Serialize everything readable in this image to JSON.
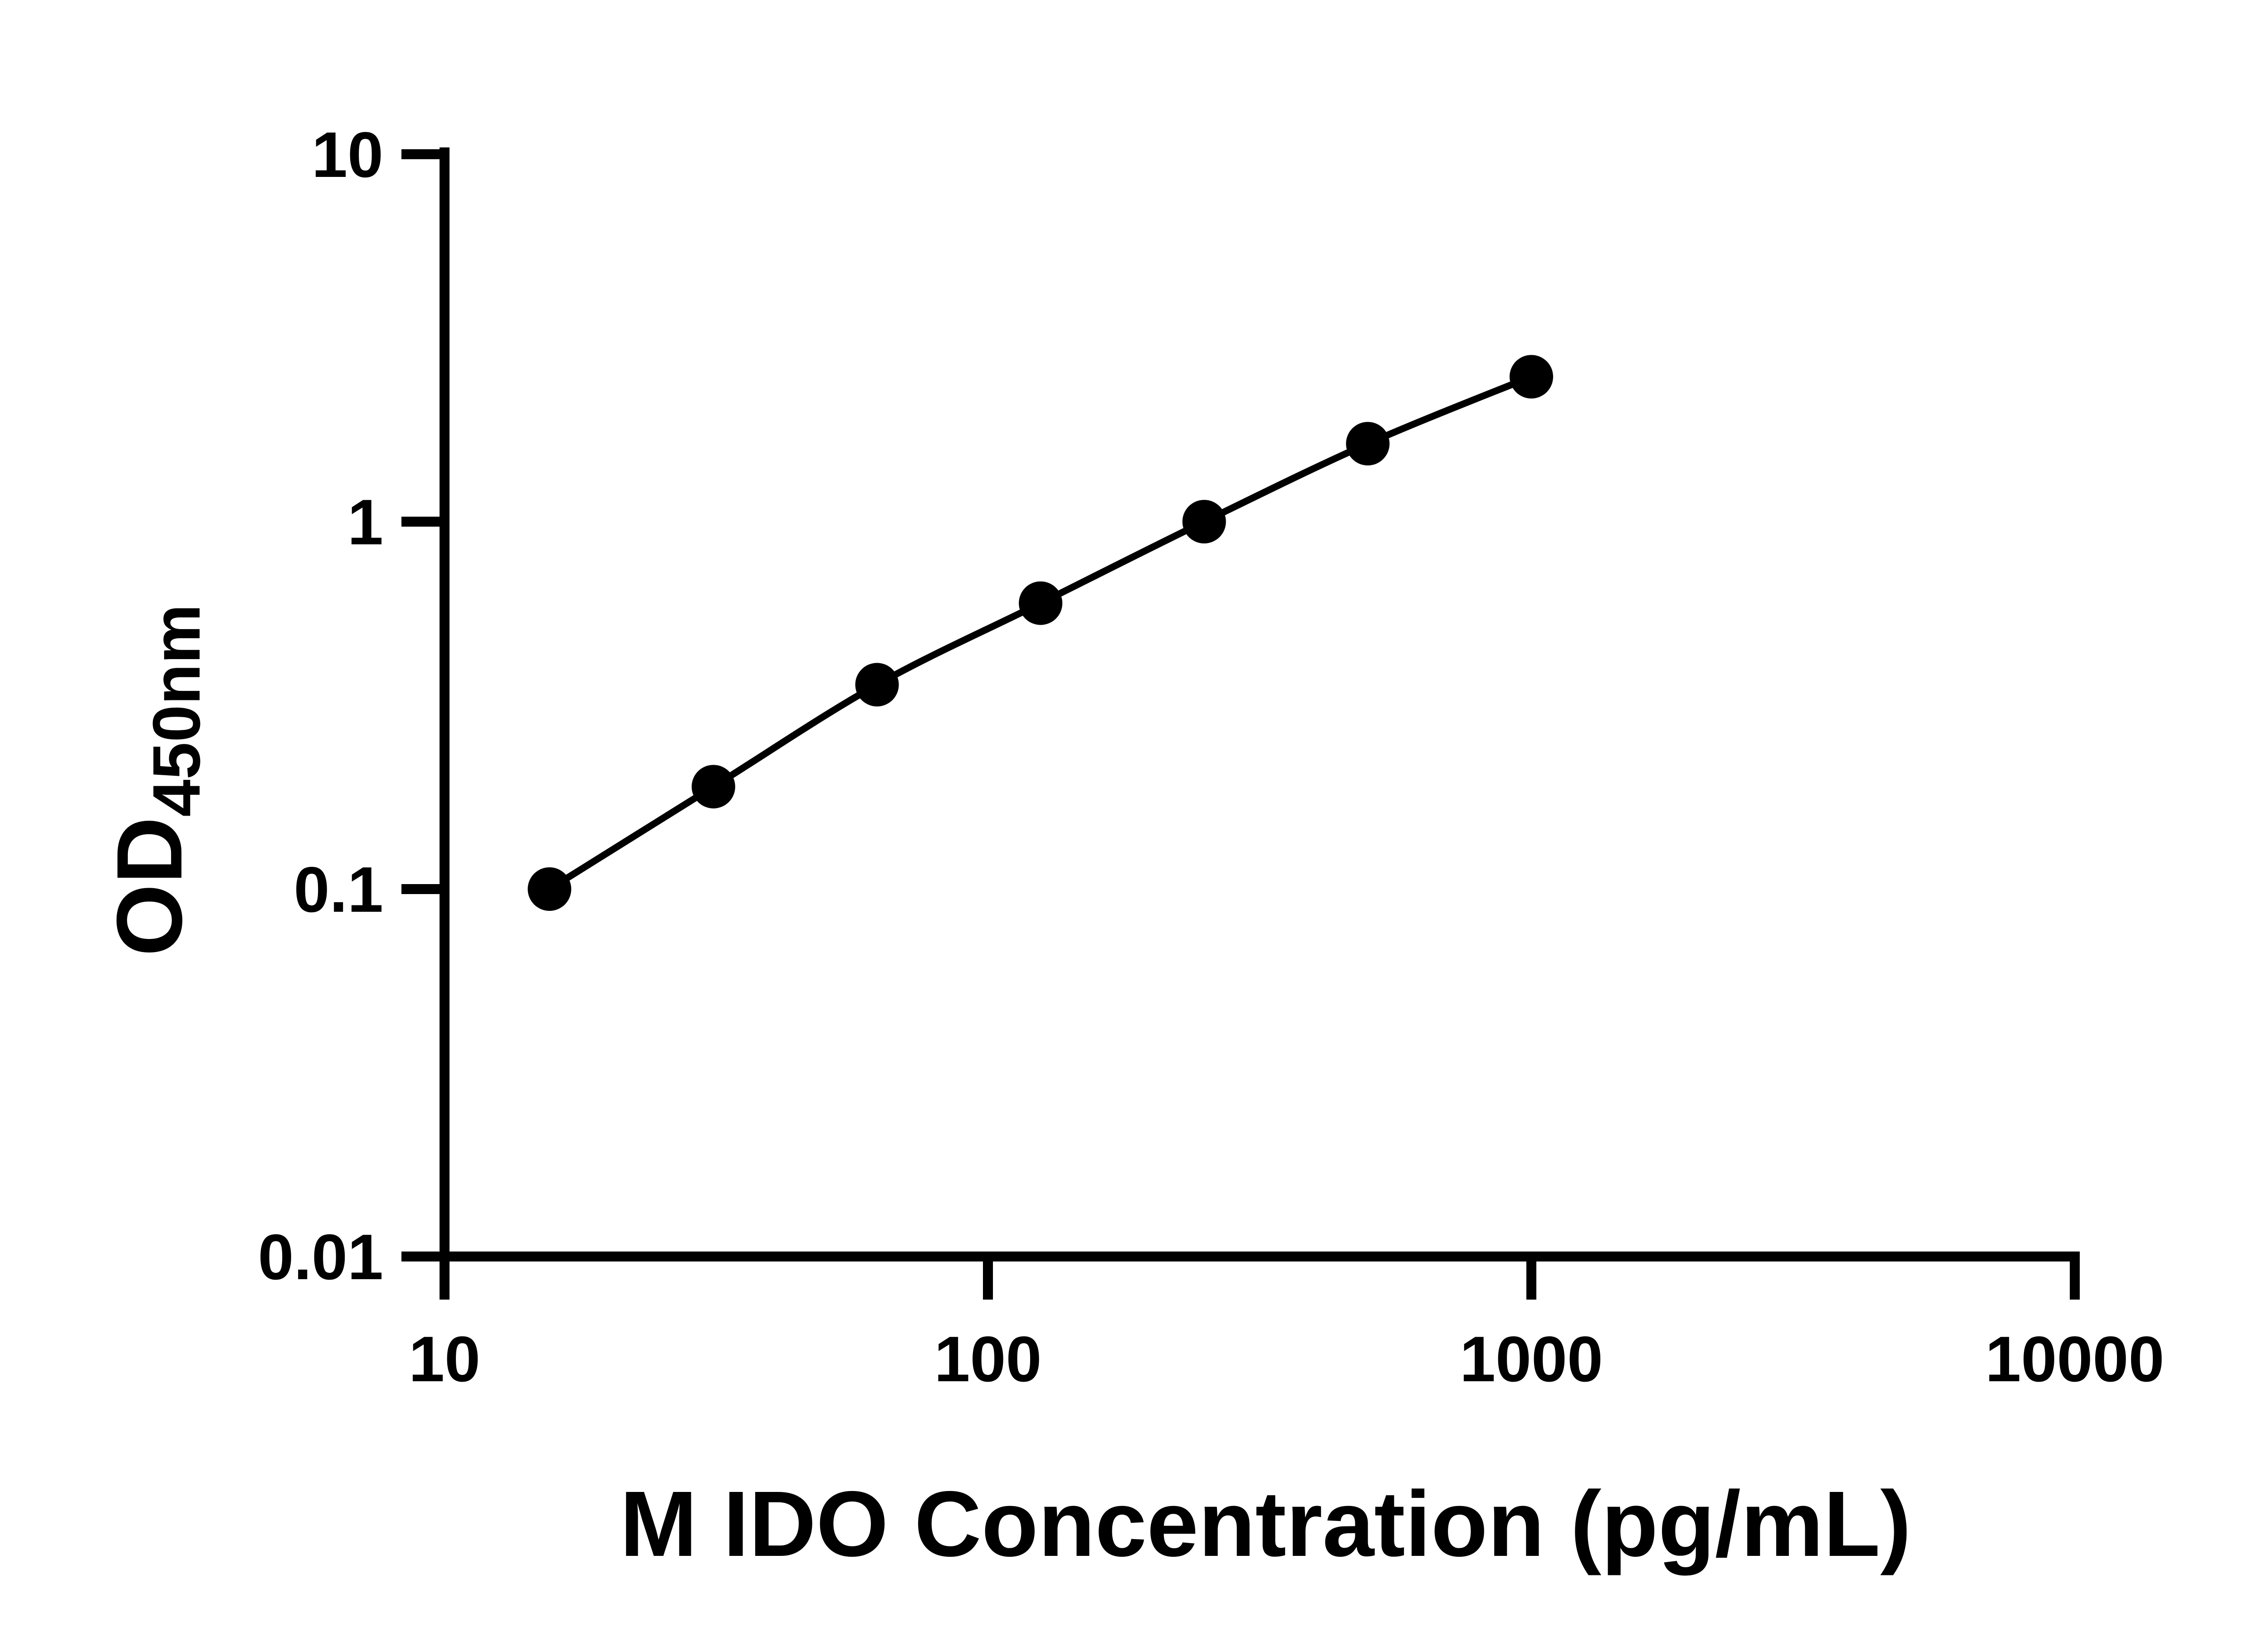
{
  "chart_data": {
    "type": "line",
    "markers": true,
    "title": "",
    "xlabel": "M IDO Concentration (pg/mL)",
    "ylabel": "OD450nm",
    "ylabel_main": "OD",
    "ylabel_sub": "450nm",
    "x_scale": "log",
    "y_scale": "log",
    "xlim": [
      10,
      10000
    ],
    "ylim": [
      0.01,
      10
    ],
    "x_ticks": [
      10,
      100,
      1000,
      10000
    ],
    "x_tick_labels": [
      "10",
      "100",
      "1000",
      "10000"
    ],
    "y_ticks": [
      10,
      1,
      0.1,
      0.01
    ],
    "y_tick_labels": [
      "10",
      "1",
      "0.1",
      "0.01"
    ],
    "grid": false,
    "legend": "none",
    "series": [
      {
        "x": [
          15.6,
          31.25,
          62.5,
          125,
          250,
          500,
          1000
        ],
        "y": [
          0.1,
          0.19,
          0.36,
          0.6,
          1.0,
          1.63,
          2.48
        ]
      }
    ],
    "colors": {
      "line": "#000000",
      "marker": "#000000",
      "text": "#000000",
      "background": "#ffffff"
    }
  }
}
